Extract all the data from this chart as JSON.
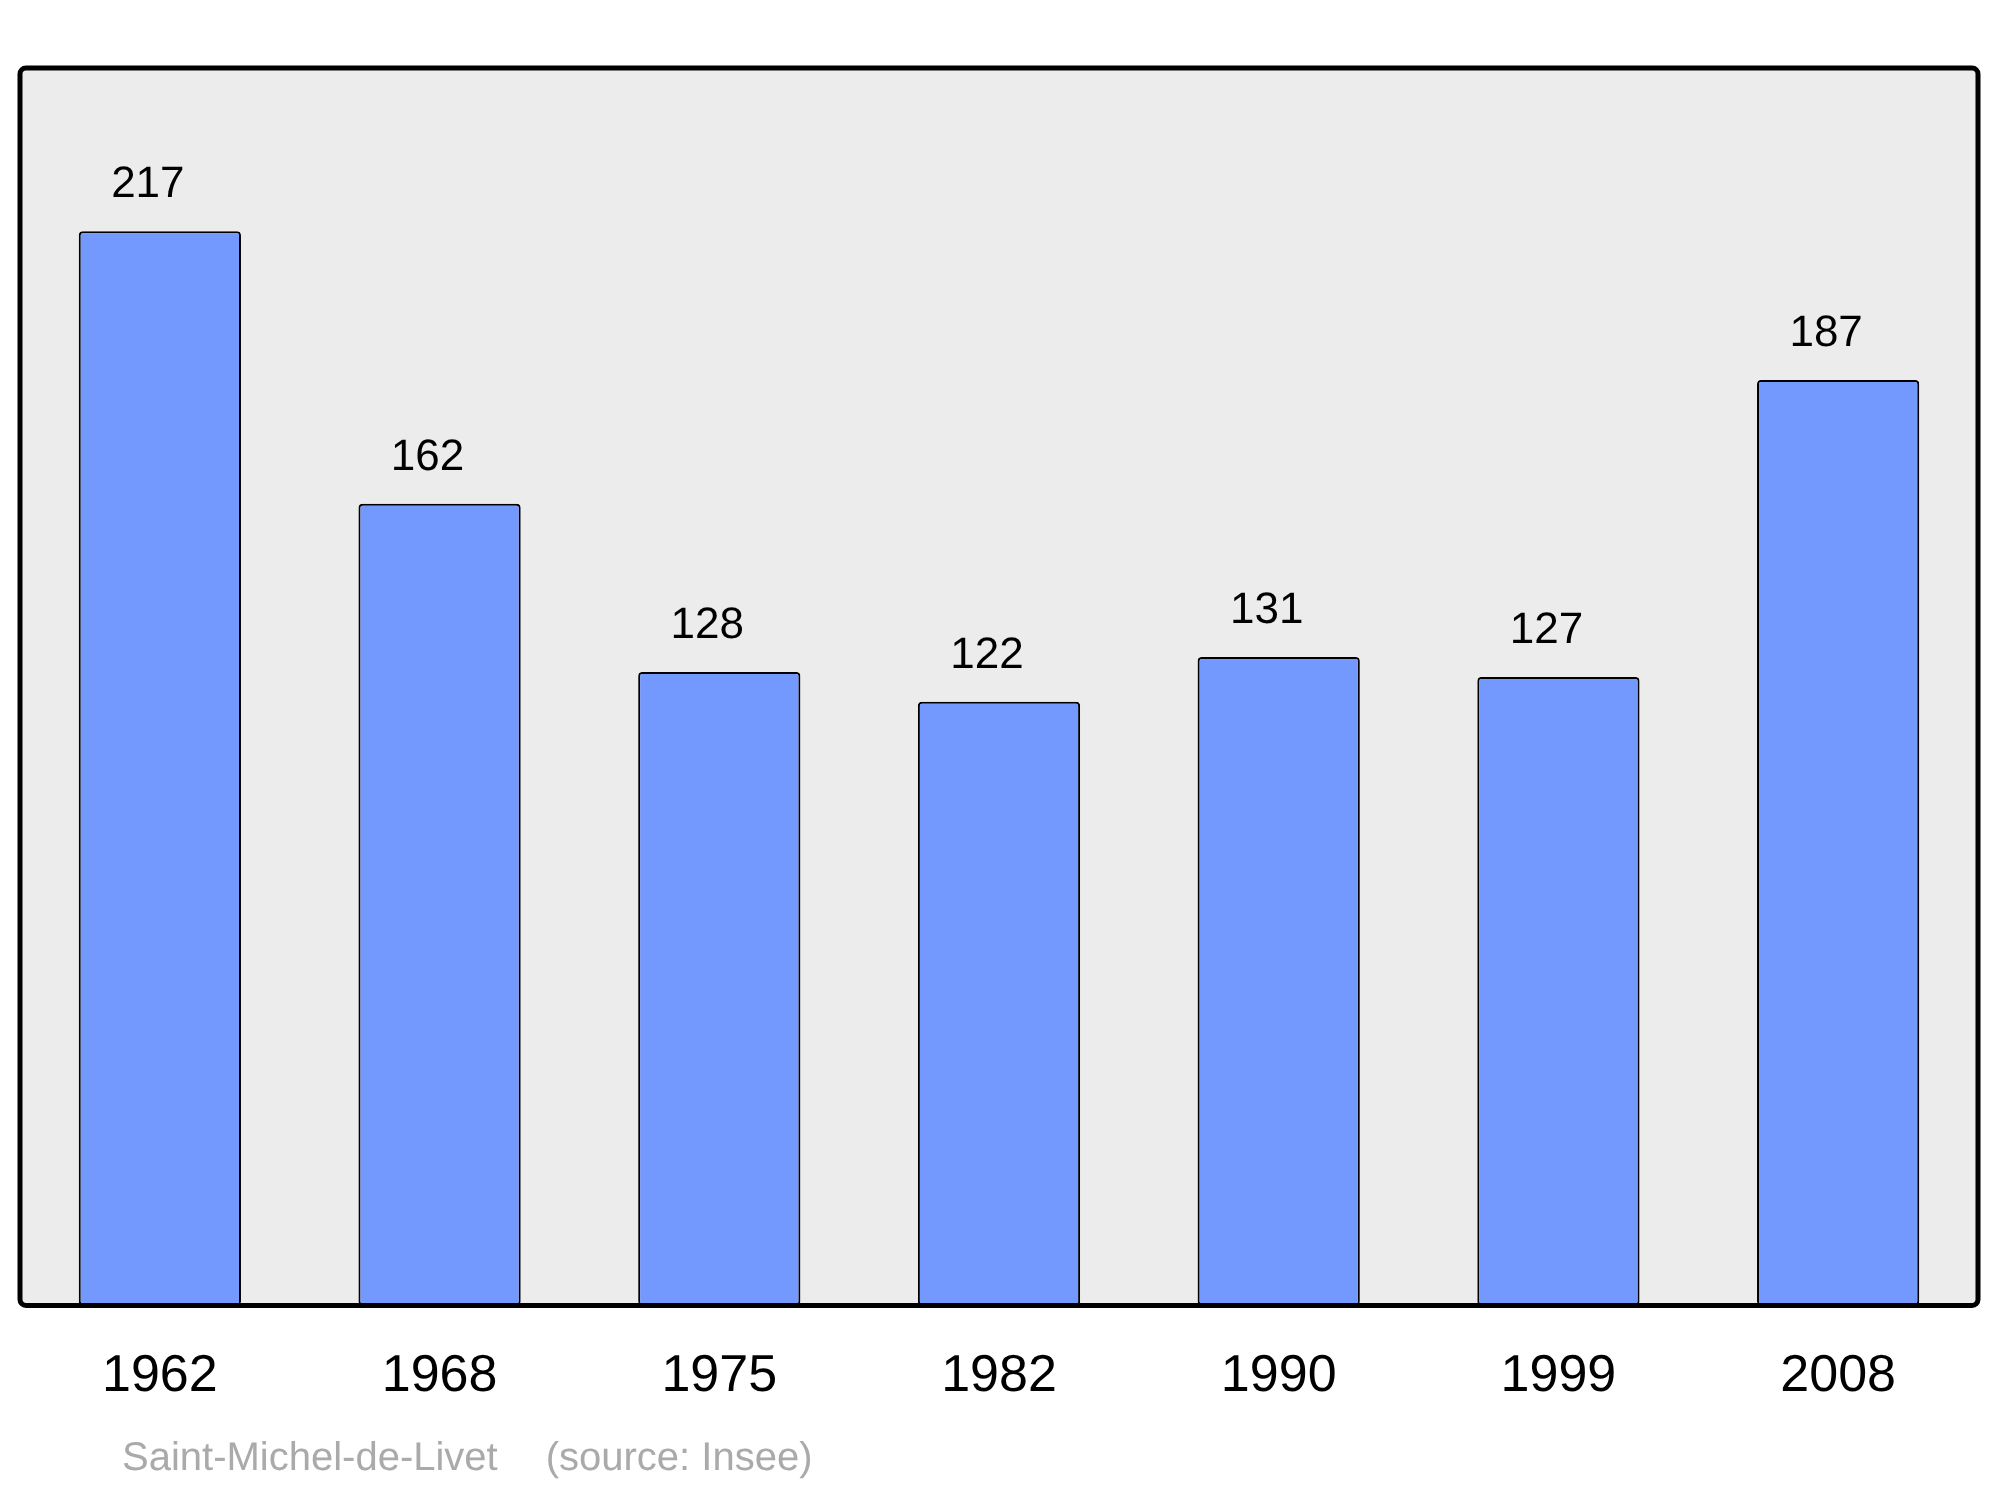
{
  "chart_data": {
    "type": "bar",
    "categories": [
      "1962",
      "1968",
      "1975",
      "1982",
      "1990",
      "1999",
      "2008"
    ],
    "values": [
      217,
      162,
      128,
      122,
      131,
      127,
      187
    ],
    "color": "#7399ff",
    "data_labels": true,
    "legend": false,
    "annotations": [
      "Saint-Michel-de-Livet",
      "(source: Insee)"
    ]
  }
}
